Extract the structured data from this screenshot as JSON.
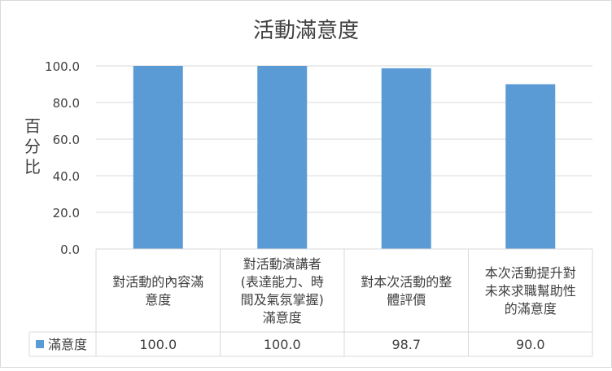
{
  "chart_data": {
    "type": "bar",
    "title": "活動滿意度",
    "ylabel": "百分比",
    "xlabel": "",
    "ylim": [
      0,
      100
    ],
    "yticks": [
      "0.0",
      "20.0",
      "40.0",
      "60.0",
      "80.0",
      "100.0"
    ],
    "grid": true,
    "categories": [
      [
        "對活動的內容滿",
        "意度"
      ],
      [
        "對活動演講者",
        "(表達能力、時",
        "間及氣氛掌握)",
        "滿意度"
      ],
      [
        "對本次活動的整",
        "體評價"
      ],
      [
        "本次活動提升對",
        "未來求職幫助性",
        "的滿意度"
      ]
    ],
    "series": [
      {
        "name": "滿意度",
        "values": [
          100.0,
          100.0,
          98.7,
          90.0
        ],
        "value_labels": [
          "100.0",
          "100.0",
          "98.7",
          "90.0"
        ],
        "color": "#5B9BD5"
      }
    ],
    "legend_placement": "data-table"
  }
}
